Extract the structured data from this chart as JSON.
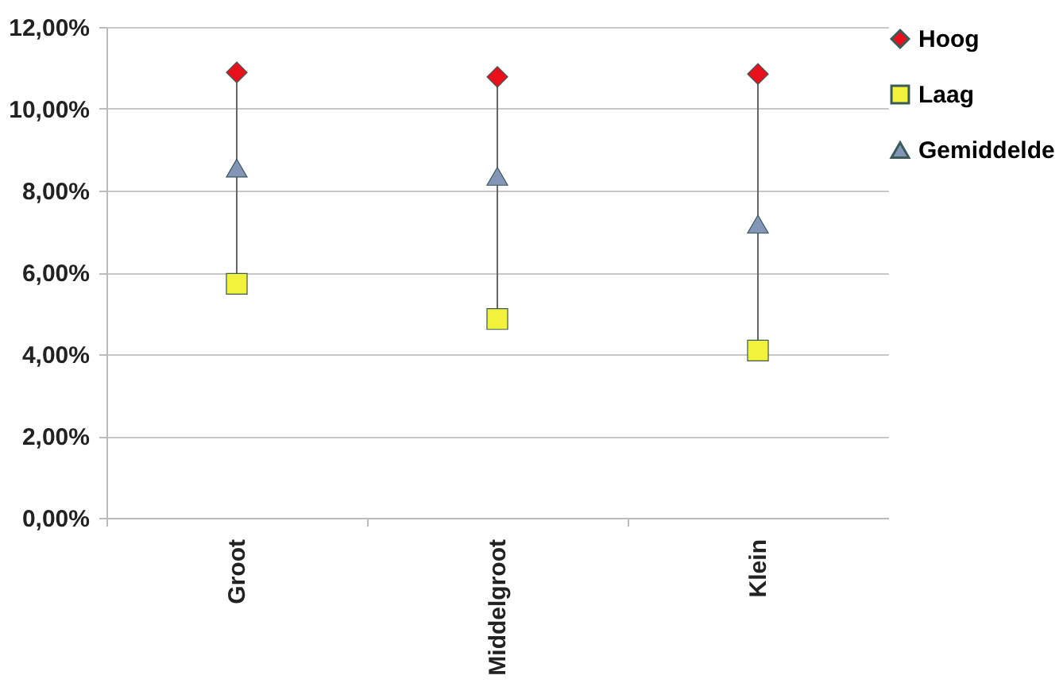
{
  "chart_data": {
    "type": "scatter",
    "categories": [
      "Groot",
      "Middelgroot",
      "Klein"
    ],
    "series": [
      {
        "name": "Hoog",
        "color": "#e8101a",
        "marker": "diamond",
        "values": [
          10.89,
          10.78,
          10.85
        ]
      },
      {
        "name": "Laag",
        "color": "#f2f23a",
        "marker": "square",
        "values": [
          5.72,
          4.86,
          4.09
        ]
      },
      {
        "name": "Gemiddelde",
        "color": "#8496b8",
        "marker": "triangle",
        "values": [
          8.55,
          8.35,
          7.18
        ]
      }
    ],
    "ylim": [
      0,
      12
    ],
    "yticks": [
      {
        "value": 0,
        "label": "0,00%"
      },
      {
        "value": 2,
        "label": "2,00%"
      },
      {
        "value": 4,
        "label": "4,00%"
      },
      {
        "value": 6,
        "label": "6,00%"
      },
      {
        "value": 8,
        "label": "8,00%"
      },
      {
        "value": 10,
        "label": "10,00%"
      },
      {
        "value": 12,
        "label": "12,00%"
      }
    ],
    "grid": "y",
    "legend": "right"
  }
}
